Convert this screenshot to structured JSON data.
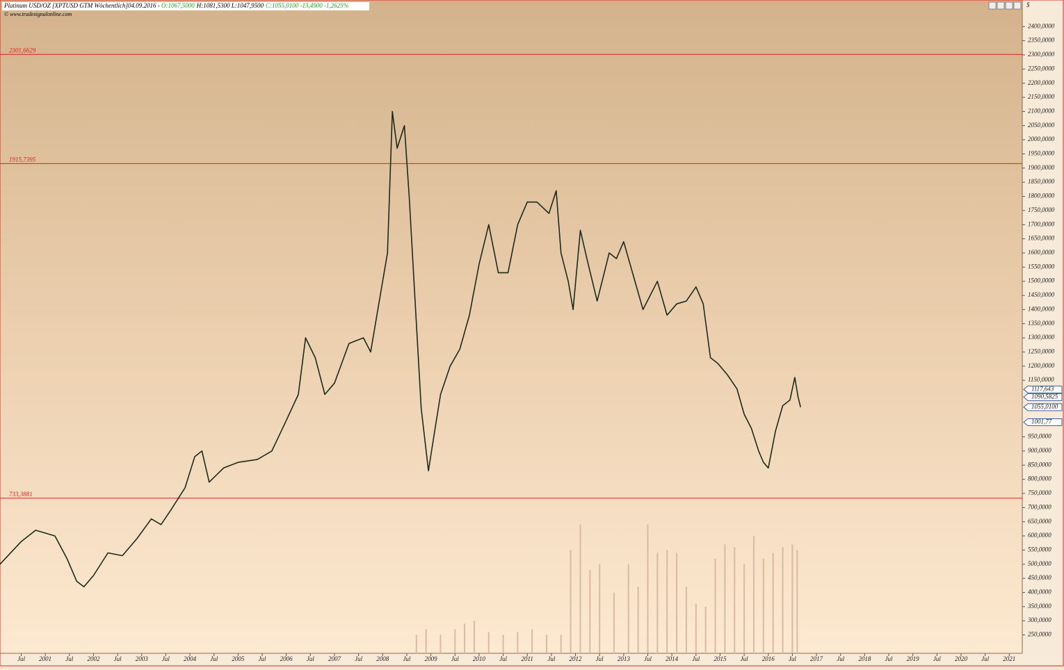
{
  "chart_data": {
    "type": "line",
    "header": {
      "title": "Platinum USD/OZ [XPTUSD GTM  Wöchentlich]04.09.2016 - ",
      "open": "O:1067,5000",
      "high_low": "H:1081,5300 L:1047,9500",
      "close": "C:1055,0100 -13,4900 -1,2625%"
    },
    "source": "© www.tradesignalonline.com",
    "currency": "$",
    "color": "#1c2a1c",
    "level_color": "#e0201c",
    "volume_color": "#d9b8a8",
    "x": [
      2000.06,
      2000.5,
      2000.8,
      2001.0,
      2001.2,
      2001.45,
      2001.65,
      2001.8,
      2002.0,
      2002.3,
      2002.6,
      2002.9,
      2003.2,
      2003.4,
      2003.6,
      2003.9,
      2004.1,
      2004.25,
      2004.4,
      2004.7,
      2005.0,
      2005.4,
      2005.7,
      2005.95,
      2006.25,
      2006.4,
      2006.6,
      2006.8,
      2007.0,
      2007.3,
      2007.6,
      2007.75,
      2007.95,
      2008.1,
      2008.2,
      2008.3,
      2008.45,
      2008.55,
      2008.65,
      2008.8,
      2008.95,
      2009.05,
      2009.2,
      2009.4,
      2009.6,
      2009.8,
      2010.0,
      2010.2,
      2010.4,
      2010.6,
      2010.8,
      2011.0,
      2011.2,
      2011.45,
      2011.6,
      2011.7,
      2011.85,
      2011.95,
      2012.1,
      2012.25,
      2012.45,
      2012.7,
      2012.85,
      2013.0,
      2013.2,
      2013.4,
      2013.55,
      2013.7,
      2013.9,
      2014.1,
      2014.3,
      2014.5,
      2014.65,
      2014.8,
      2014.95,
      2015.15,
      2015.35,
      2015.5,
      2015.65,
      2015.8,
      2015.9,
      2016.0,
      2016.15,
      2016.3,
      2016.45,
      2016.55,
      2016.62,
      2016.67
    ],
    "values": [
      500,
      580,
      620,
      610,
      600,
      520,
      440,
      420,
      460,
      540,
      530,
      590,
      660,
      640,
      690,
      770,
      880,
      900,
      790,
      840,
      860,
      870,
      900,
      990,
      1100,
      1300,
      1230,
      1100,
      1140,
      1280,
      1300,
      1250,
      1450,
      1600,
      2100,
      1970,
      2050,
      1800,
      1500,
      1050,
      830,
      940,
      1100,
      1200,
      1260,
      1380,
      1560,
      1700,
      1530,
      1530,
      1700,
      1780,
      1780,
      1740,
      1820,
      1600,
      1500,
      1400,
      1680,
      1570,
      1430,
      1600,
      1580,
      1640,
      1520,
      1400,
      1450,
      1500,
      1380,
      1420,
      1430,
      1480,
      1420,
      1230,
      1210,
      1170,
      1120,
      1030,
      980,
      900,
      860,
      840,
      970,
      1060,
      1080,
      1160,
      1090,
      1055
    ],
    "volume": {
      "x": [
        2008.7,
        2008.9,
        2009.2,
        2009.5,
        2009.7,
        2009.9,
        2010.2,
        2010.5,
        2010.8,
        2011.1,
        2011.4,
        2011.7,
        2011.9,
        2012.1,
        2012.3,
        2012.5,
        2012.8,
        2013.1,
        2013.3,
        2013.5,
        2013.7,
        2013.9,
        2014.1,
        2014.3,
        2014.5,
        2014.7,
        2014.9,
        2015.1,
        2015.3,
        2015.5,
        2015.7,
        2015.9,
        2016.1,
        2016.3,
        2016.5,
        2016.6
      ],
      "values": [
        250,
        270,
        250,
        270,
        290,
        300,
        260,
        250,
        260,
        270,
        250,
        250,
        550,
        640,
        480,
        500,
        400,
        500,
        420,
        640,
        540,
        550,
        540,
        420,
        360,
        350,
        520,
        570,
        560,
        500,
        600,
        520,
        540,
        560,
        570,
        550
      ]
    },
    "levels": [
      {
        "value": 2301.6629,
        "label": "2301,6629"
      },
      {
        "value": 1915.7395,
        "label": "1915,7395"
      },
      {
        "value": 733.3881,
        "label": "733,3881"
      }
    ],
    "price_markers": [
      {
        "value": 1117.643,
        "label": "1117,643"
      },
      {
        "value": 1090.5825,
        "label": "1090,5825"
      },
      {
        "value": 1055.01,
        "label": "1055,0100"
      },
      {
        "value": 1001.77,
        "label": "1001,77"
      }
    ],
    "xlim": [
      2000.06,
      2021.27
    ],
    "ylim": [
      185,
      2494
    ],
    "xticks": [
      {
        "value": 2000.5,
        "label": "Jul"
      },
      2001,
      {
        "value": 2001.5,
        "label": "Jul"
      },
      2002,
      {
        "value": 2002.5,
        "label": "Jul"
      },
      2003,
      {
        "value": 2003.5,
        "label": "Jul"
      },
      2004,
      {
        "value": 2004.5,
        "label": "Jul"
      },
      2005,
      {
        "value": 2005.5,
        "label": "Jul"
      },
      2006,
      {
        "value": 2006.5,
        "label": "Jul"
      },
      2007,
      {
        "value": 2007.5,
        "label": "Jul"
      },
      2008,
      {
        "value": 2008.5,
        "label": "Jul"
      },
      2009,
      {
        "value": 2009.5,
        "label": "Jul"
      },
      2010,
      {
        "value": 2010.5,
        "label": "Jul"
      },
      2011,
      {
        "value": 2011.5,
        "label": "Jul"
      },
      2012,
      {
        "value": 2012.5,
        "label": "Jul"
      },
      2013,
      {
        "value": 2013.5,
        "label": "Jul"
      },
      2014,
      {
        "value": 2014.5,
        "label": "Jul"
      },
      2015,
      {
        "value": 2015.5,
        "label": "Jul"
      },
      2016,
      {
        "value": 2016.5,
        "label": "Jul"
      },
      2017,
      {
        "value": 2017.5,
        "label": "Jul"
      },
      2018,
      {
        "value": 2018.5,
        "label": "Jul"
      },
      2019,
      {
        "value": 2019.5,
        "label": "Jul"
      },
      2020,
      {
        "value": 2020.5,
        "label": "Jul"
      },
      2021
    ],
    "yticks": [
      {
        "value": 2400,
        "label": "2400,0000"
      },
      {
        "value": 2350,
        "label": "2350,0000"
      },
      {
        "value": 2300,
        "label": "2300,0000"
      },
      {
        "value": 2250,
        "label": "2250,0000"
      },
      {
        "value": 2200,
        "label": "2200,0000"
      },
      {
        "value": 2150,
        "label": "2150,0000"
      },
      {
        "value": 2100,
        "label": "2100,0000"
      },
      {
        "value": 2050,
        "label": "2050,0000"
      },
      {
        "value": 2000,
        "label": "2000,0000"
      },
      {
        "value": 1950,
        "label": "1950,0000"
      },
      {
        "value": 1900,
        "label": "1900,0000"
      },
      {
        "value": 1850,
        "label": "1850,0000"
      },
      {
        "value": 1800,
        "label": "1800,0000"
      },
      {
        "value": 1750,
        "label": "1750,0000"
      },
      {
        "value": 1700,
        "label": "1700,0000"
      },
      {
        "value": 1650,
        "label": "1650,0000"
      },
      {
        "value": 1600,
        "label": "1600,0000"
      },
      {
        "value": 1550,
        "label": "1550,0000"
      },
      {
        "value": 1500,
        "label": "1500,0000"
      },
      {
        "value": 1450,
        "label": "1450,0000"
      },
      {
        "value": 1400,
        "label": "1400,0000"
      },
      {
        "value": 1350,
        "label": "1350,0000"
      },
      {
        "value": 1300,
        "label": "1300,0000"
      },
      {
        "value": 1250,
        "label": "1250,0000"
      },
      {
        "value": 1200,
        "label": "1200,0000"
      },
      {
        "value": 1150,
        "label": "1150,0000"
      },
      {
        "value": 950,
        "label": "950,0000"
      },
      {
        "value": 900,
        "label": "900,0000"
      },
      {
        "value": 850,
        "label": "850,0000"
      },
      {
        "value": 800,
        "label": "800,0000"
      },
      {
        "value": 750,
        "label": "750,0000"
      },
      {
        "value": 700,
        "label": "700,0000"
      },
      {
        "value": 650,
        "label": "650,0000"
      },
      {
        "value": 600,
        "label": "600,0000"
      },
      {
        "value": 550,
        "label": "550,0000"
      },
      {
        "value": 500,
        "label": "500,0000"
      },
      {
        "value": 450,
        "label": "450,0000"
      },
      {
        "value": 400,
        "label": "400,0000"
      },
      {
        "value": 350,
        "label": "350,0000"
      },
      {
        "value": 300,
        "label": "300,0000"
      },
      {
        "value": 250,
        "label": "250,0000"
      }
    ]
  }
}
